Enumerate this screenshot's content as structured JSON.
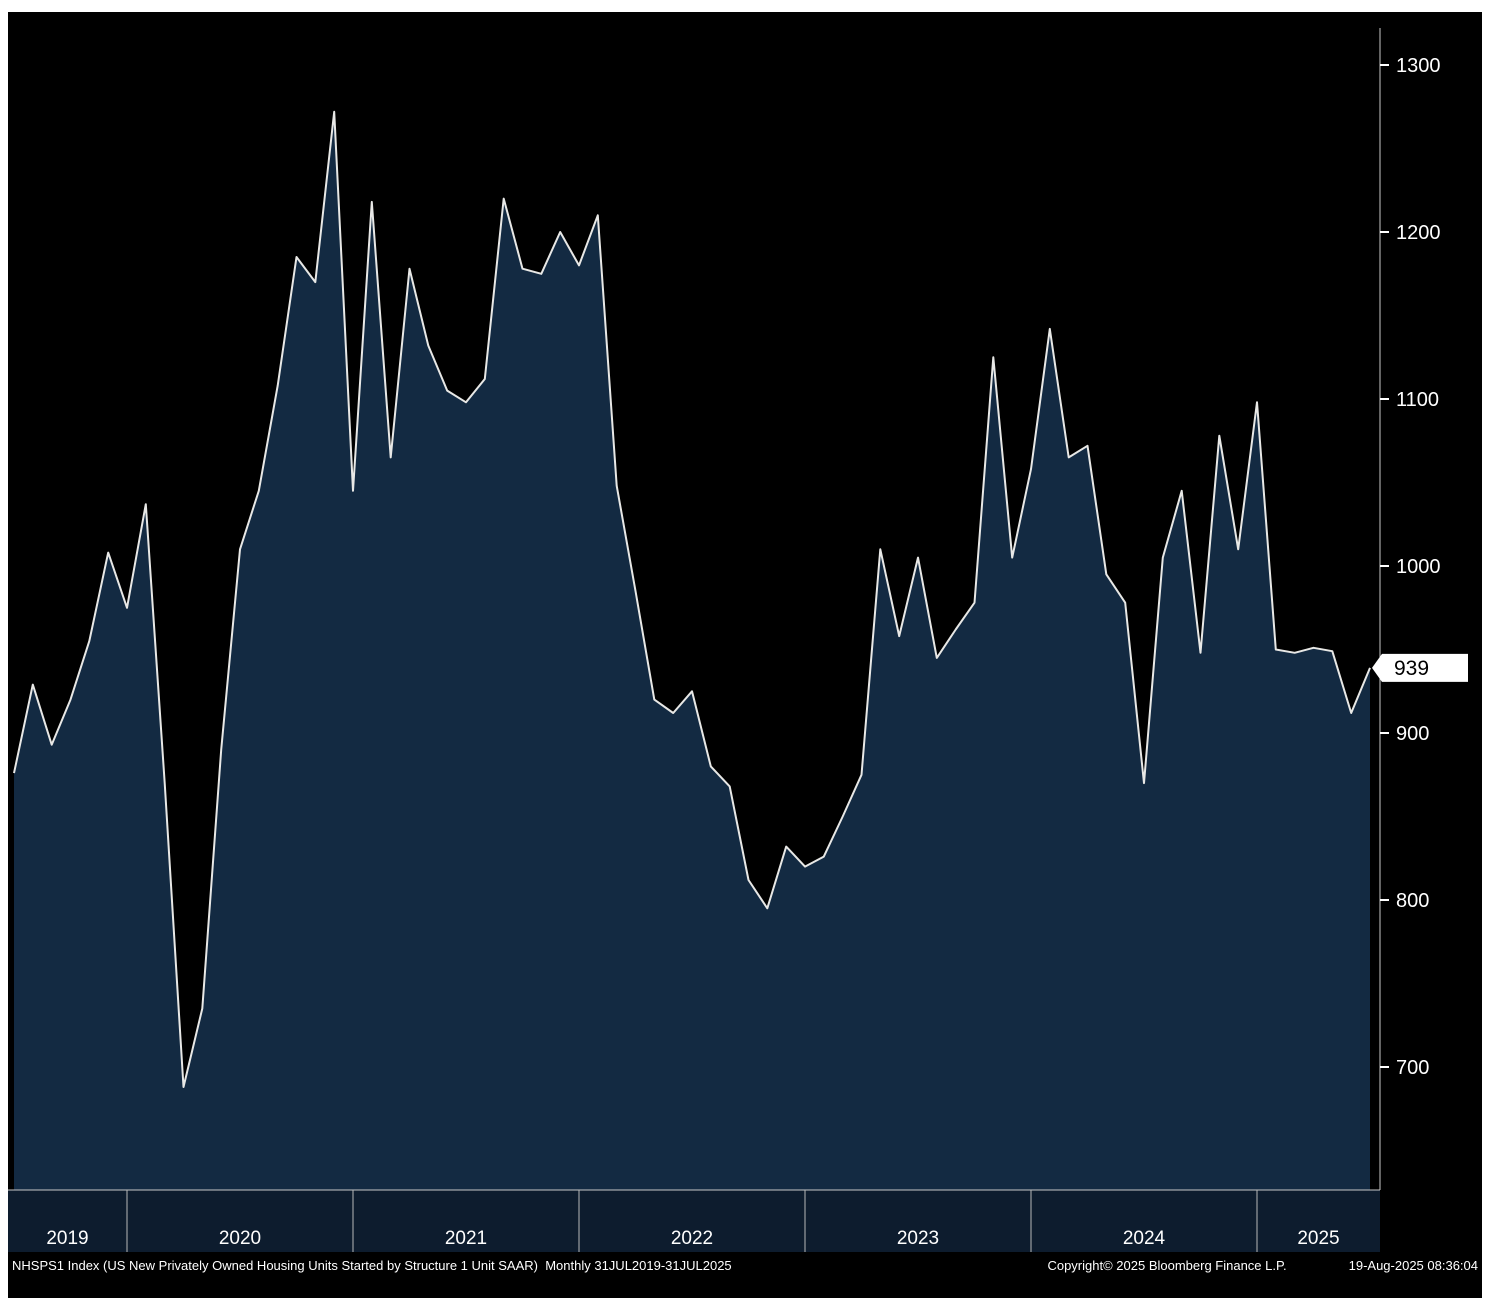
{
  "status_bar": {
    "left": "NHSPS1 Index (US New Privately Owned Housing Units Started by Structure 1 Unit SAAR)  Monthly 31JUL2019-31JUL2025",
    "center": "Copyright© 2025 Bloomberg Finance L.P.",
    "right": "19-Aug-2025 08:36:04"
  },
  "chart_data": {
    "type": "area",
    "title": "NHSPS1 Index (US New Privately Owned Housing Units Started by Structure 1 Unit SAAR)",
    "frequency": "Monthly",
    "period": "31JUL2019-31JUL2025",
    "last_value": 939,
    "y_ticks": [
      700,
      800,
      900,
      1000,
      1100,
      1200,
      1300
    ],
    "ylim": [
      630,
      1325
    ],
    "grid": "off",
    "legend": "none",
    "year_labels": [
      "2019",
      "2020",
      "2021",
      "2022",
      "2023",
      "2024",
      "2025"
    ],
    "x": [
      "2019-07",
      "2019-08",
      "2019-09",
      "2019-10",
      "2019-11",
      "2019-12",
      "2020-01",
      "2020-02",
      "2020-03",
      "2020-04",
      "2020-05",
      "2020-06",
      "2020-07",
      "2020-08",
      "2020-09",
      "2020-10",
      "2020-11",
      "2020-12",
      "2021-01",
      "2021-02",
      "2021-03",
      "2021-04",
      "2021-05",
      "2021-06",
      "2021-07",
      "2021-08",
      "2021-09",
      "2021-10",
      "2021-11",
      "2021-12",
      "2022-01",
      "2022-02",
      "2022-03",
      "2022-04",
      "2022-05",
      "2022-06",
      "2022-07",
      "2022-08",
      "2022-09",
      "2022-10",
      "2022-11",
      "2022-12",
      "2023-01",
      "2023-02",
      "2023-03",
      "2023-04",
      "2023-05",
      "2023-06",
      "2023-07",
      "2023-08",
      "2023-09",
      "2023-10",
      "2023-11",
      "2023-12",
      "2024-01",
      "2024-02",
      "2024-03",
      "2024-04",
      "2024-05",
      "2024-06",
      "2024-07",
      "2024-08",
      "2024-09",
      "2024-10",
      "2024-11",
      "2024-12",
      "2025-01",
      "2025-02",
      "2025-03",
      "2025-04",
      "2025-05",
      "2025-06",
      "2025-07"
    ],
    "values": [
      876,
      929,
      893,
      920,
      955,
      1008,
      975,
      1037,
      870,
      688,
      735,
      890,
      1010,
      1045,
      1108,
      1185,
      1170,
      1272,
      1045,
      1218,
      1065,
      1178,
      1132,
      1105,
      1098,
      1112,
      1220,
      1178,
      1175,
      1200,
      1180,
      1210,
      1048,
      985,
      920,
      912,
      925,
      880,
      868,
      812,
      795,
      832,
      820,
      826,
      850,
      875,
      1010,
      958,
      1005,
      945,
      962,
      978,
      1125,
      1005,
      1058,
      1142,
      1065,
      1072,
      995,
      978,
      870,
      1005,
      1045,
      948,
      1078,
      1010,
      1098,
      950,
      948,
      951,
      949,
      912,
      939
    ],
    "colors": {
      "background": "#000000",
      "area_fill": "#132a42",
      "line": "#e8e8e6",
      "axis": "#c8c8c8",
      "axis_text": "#ffffff",
      "axis_strip_bg": "#0d1c2e",
      "year_tick": "#b8b8b8",
      "last_value_bg": "#ffffff",
      "last_value_text": "#000000"
    }
  }
}
